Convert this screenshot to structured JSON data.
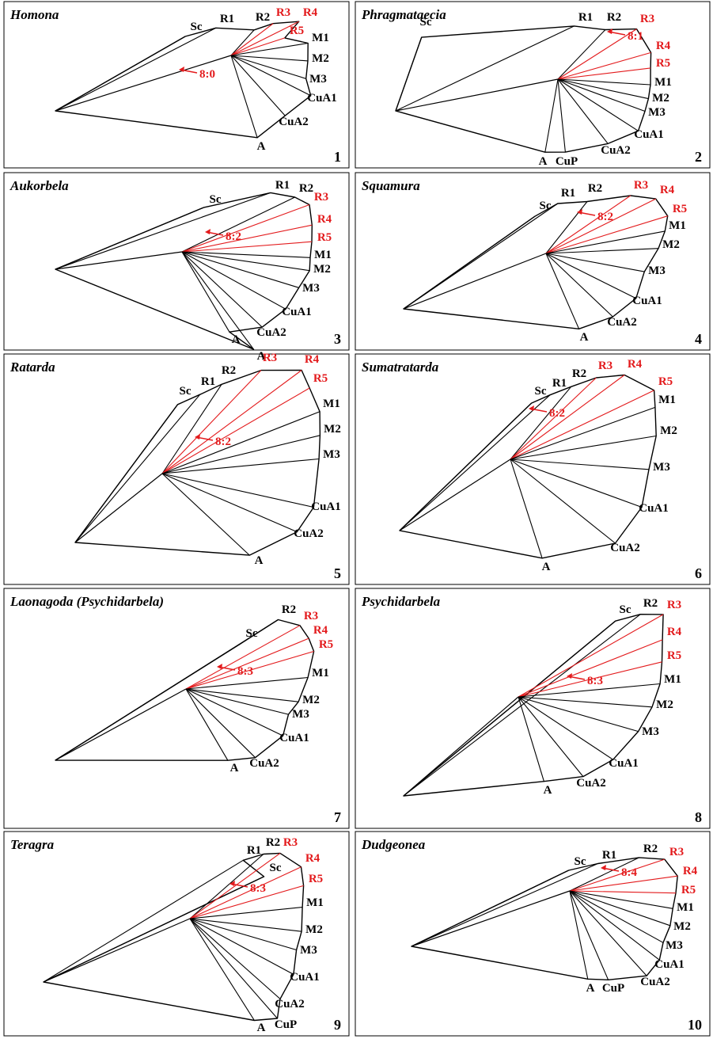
{
  "panels": [
    {
      "title": "Homona",
      "number": "1",
      "ratio": "8:0",
      "labels": [
        {
          "text": "Sc",
          "color": "#000"
        },
        {
          "text": "R1",
          "color": "#000"
        },
        {
          "text": "R2",
          "color": "#000"
        },
        {
          "text": "R3",
          "color": "#e31a1c"
        },
        {
          "text": "R4",
          "color": "#e31a1c"
        },
        {
          "text": "R5",
          "color": "#e31a1c"
        },
        {
          "text": "M1",
          "color": "#000"
        },
        {
          "text": "M2",
          "color": "#000"
        },
        {
          "text": "M3",
          "color": "#000"
        },
        {
          "text": "CuA1",
          "color": "#000"
        },
        {
          "text": "CuA2",
          "color": "#000"
        },
        {
          "text": "A",
          "color": "#000"
        }
      ]
    },
    {
      "title": "Phragmataecia",
      "number": "2",
      "ratio": "8:1",
      "labels": [
        {
          "text": "Sc",
          "color": "#000"
        },
        {
          "text": "R1",
          "color": "#000"
        },
        {
          "text": "R2",
          "color": "#000"
        },
        {
          "text": "R3",
          "color": "#e31a1c"
        },
        {
          "text": "R4",
          "color": "#e31a1c"
        },
        {
          "text": "R5",
          "color": "#e31a1c"
        },
        {
          "text": "M1",
          "color": "#000"
        },
        {
          "text": "M2",
          "color": "#000"
        },
        {
          "text": "M3",
          "color": "#000"
        },
        {
          "text": "CuA1",
          "color": "#000"
        },
        {
          "text": "CuA2",
          "color": "#000"
        },
        {
          "text": "CuP",
          "color": "#000"
        },
        {
          "text": "A",
          "color": "#000"
        }
      ]
    },
    {
      "title": "Aukorbela",
      "number": "3",
      "ratio": "8:2",
      "labels": [
        {
          "text": "Sc",
          "color": "#000"
        },
        {
          "text": "R1",
          "color": "#000"
        },
        {
          "text": "R2",
          "color": "#000"
        },
        {
          "text": "R3",
          "color": "#e31a1c"
        },
        {
          "text": "R4",
          "color": "#e31a1c"
        },
        {
          "text": "R5",
          "color": "#e31a1c"
        },
        {
          "text": "M1",
          "color": "#000"
        },
        {
          "text": "M2",
          "color": "#000"
        },
        {
          "text": "M3",
          "color": "#000"
        },
        {
          "text": "CuA1",
          "color": "#000"
        },
        {
          "text": "CuA2",
          "color": "#000"
        },
        {
          "text": "A",
          "color": "#000"
        },
        {
          "text": "A",
          "color": "#000"
        }
      ]
    },
    {
      "title": "Squamura",
      "number": "4",
      "ratio": "8:2",
      "labels": [
        {
          "text": "Sc",
          "color": "#000"
        },
        {
          "text": "R1",
          "color": "#000"
        },
        {
          "text": "R2",
          "color": "#000"
        },
        {
          "text": "R3",
          "color": "#e31a1c"
        },
        {
          "text": "R4",
          "color": "#e31a1c"
        },
        {
          "text": "R5",
          "color": "#e31a1c"
        },
        {
          "text": "M1",
          "color": "#000"
        },
        {
          "text": "M2",
          "color": "#000"
        },
        {
          "text": "M3",
          "color": "#000"
        },
        {
          "text": "CuA1",
          "color": "#000"
        },
        {
          "text": "CuA2",
          "color": "#000"
        },
        {
          "text": "A",
          "color": "#000"
        }
      ]
    },
    {
      "title": "Ratarda",
      "number": "5",
      "ratio": "8:2",
      "labels": [
        {
          "text": "Sc",
          "color": "#000"
        },
        {
          "text": "R1",
          "color": "#000"
        },
        {
          "text": "R2",
          "color": "#000"
        },
        {
          "text": "R3",
          "color": "#e31a1c"
        },
        {
          "text": "R4",
          "color": "#e31a1c"
        },
        {
          "text": "R5",
          "color": "#e31a1c"
        },
        {
          "text": "M1",
          "color": "#000"
        },
        {
          "text": "M2",
          "color": "#000"
        },
        {
          "text": "M3",
          "color": "#000"
        },
        {
          "text": "CuA1",
          "color": "#000"
        },
        {
          "text": "CuA2",
          "color": "#000"
        },
        {
          "text": "A",
          "color": "#000"
        }
      ]
    },
    {
      "title": "Sumatratarda",
      "number": "6",
      "ratio": "8:2",
      "labels": [
        {
          "text": "Sc",
          "color": "#000"
        },
        {
          "text": "R1",
          "color": "#000"
        },
        {
          "text": "R2",
          "color": "#000"
        },
        {
          "text": "R3",
          "color": "#e31a1c"
        },
        {
          "text": "R4",
          "color": "#e31a1c"
        },
        {
          "text": "R5",
          "color": "#e31a1c"
        },
        {
          "text": "M1",
          "color": "#000"
        },
        {
          "text": "M2",
          "color": "#000"
        },
        {
          "text": "M3",
          "color": "#000"
        },
        {
          "text": "CuA1",
          "color": "#000"
        },
        {
          "text": "CuA2",
          "color": "#000"
        },
        {
          "text": "A",
          "color": "#000"
        }
      ]
    },
    {
      "title": "Laonagoda (Psychidarbela)",
      "number": "7",
      "ratio": "8:3",
      "labels": [
        {
          "text": "Sc",
          "color": "#000"
        },
        {
          "text": "R2",
          "color": "#000"
        },
        {
          "text": "R3",
          "color": "#e31a1c"
        },
        {
          "text": "R4",
          "color": "#e31a1c"
        },
        {
          "text": "R5",
          "color": "#e31a1c"
        },
        {
          "text": "M1",
          "color": "#000"
        },
        {
          "text": "M2",
          "color": "#000"
        },
        {
          "text": "M3",
          "color": "#000"
        },
        {
          "text": "CuA1",
          "color": "#000"
        },
        {
          "text": "CuA2",
          "color": "#000"
        },
        {
          "text": "A",
          "color": "#000"
        }
      ]
    },
    {
      "title": "Psychidarbela",
      "number": "8",
      "ratio": "8:3",
      "labels": [
        {
          "text": "Sc",
          "color": "#000"
        },
        {
          "text": "R2",
          "color": "#000"
        },
        {
          "text": "R3",
          "color": "#e31a1c"
        },
        {
          "text": "R4",
          "color": "#e31a1c"
        },
        {
          "text": "R5",
          "color": "#e31a1c"
        },
        {
          "text": "M1",
          "color": "#000"
        },
        {
          "text": "M2",
          "color": "#000"
        },
        {
          "text": "M3",
          "color": "#000"
        },
        {
          "text": "CuA1",
          "color": "#000"
        },
        {
          "text": "CuA2",
          "color": "#000"
        },
        {
          "text": "A",
          "color": "#000"
        }
      ]
    },
    {
      "title": "Teragra",
      "number": "9",
      "ratio": "8:3",
      "labels": [
        {
          "text": "Sc",
          "color": "#000"
        },
        {
          "text": "R1",
          "color": "#000"
        },
        {
          "text": "R2",
          "color": "#000"
        },
        {
          "text": "R3",
          "color": "#e31a1c"
        },
        {
          "text": "R4",
          "color": "#e31a1c"
        },
        {
          "text": "R5",
          "color": "#e31a1c"
        },
        {
          "text": "M1",
          "color": "#000"
        },
        {
          "text": "M2",
          "color": "#000"
        },
        {
          "text": "M3",
          "color": "#000"
        },
        {
          "text": "CuA1",
          "color": "#000"
        },
        {
          "text": "CuA2",
          "color": "#000"
        },
        {
          "text": "CuP",
          "color": "#000"
        },
        {
          "text": "A",
          "color": "#000"
        }
      ]
    },
    {
      "title": "Dudgeonea",
      "number": "10",
      "ratio": "8:4",
      "labels": [
        {
          "text": "Sc",
          "color": "#000"
        },
        {
          "text": "R1",
          "color": "#000"
        },
        {
          "text": "R2",
          "color": "#000"
        },
        {
          "text": "R3",
          "color": "#e31a1c"
        },
        {
          "text": "R4",
          "color": "#e31a1c"
        },
        {
          "text": "R5",
          "color": "#e31a1c"
        },
        {
          "text": "M1",
          "color": "#000"
        },
        {
          "text": "M2",
          "color": "#000"
        },
        {
          "text": "M3",
          "color": "#000"
        },
        {
          "text": "CuA1",
          "color": "#000"
        },
        {
          "text": "CuA2",
          "color": "#000"
        },
        {
          "text": "CuP",
          "color": "#000"
        },
        {
          "text": "A",
          "color": "#000"
        }
      ]
    }
  ]
}
